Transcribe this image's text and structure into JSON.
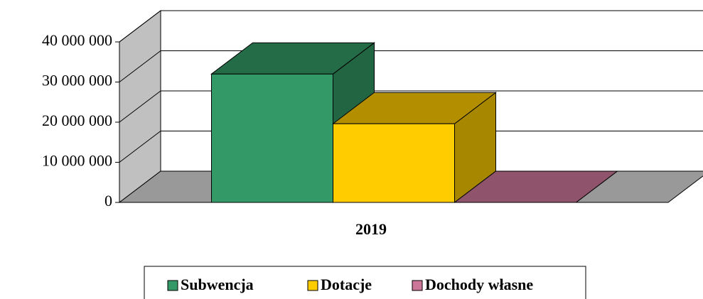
{
  "chart_data": {
    "type": "bar3d",
    "categories": [
      "2019"
    ],
    "series": [
      {
        "name": "Subwencja",
        "color": "#339966",
        "values": [
          32000000
        ]
      },
      {
        "name": "Dotacje",
        "color": "#FFCC00",
        "values": [
          19600000
        ]
      },
      {
        "name": "Dochody własne",
        "color": "#CC7799",
        "values": [
          0
        ]
      }
    ],
    "ylim": [
      0,
      40000000
    ],
    "yticks": [
      {
        "value": 0,
        "label": "0"
      },
      {
        "value": 10000000,
        "label": "10 000 000"
      },
      {
        "value": 20000000,
        "label": "20 000 000"
      },
      {
        "value": 30000000,
        "label": "30 000 000"
      },
      {
        "value": 40000000,
        "label": "40 000 000"
      }
    ],
    "grid": true,
    "legend": "bottom"
  }
}
